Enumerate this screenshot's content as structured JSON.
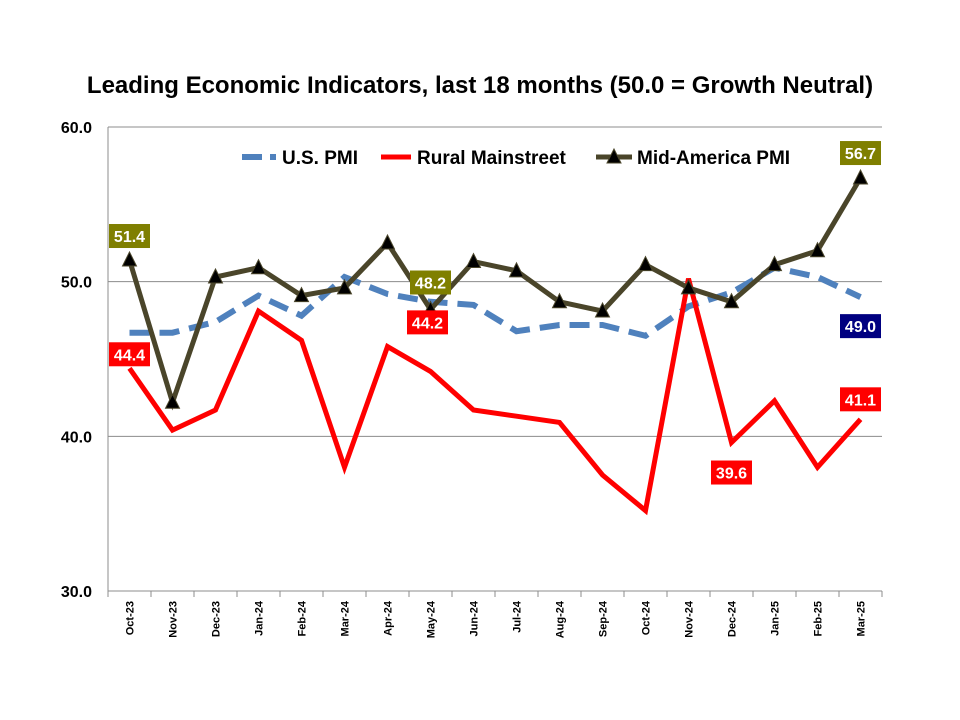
{
  "chart_data": {
    "type": "line",
    "title": "Leading Economic Indicators, last 18 months (50.0 = Growth Neutral)",
    "xlabel": "",
    "ylabel": "",
    "ylim": [
      30,
      60
    ],
    "yticks": [
      "30.0",
      "40.0",
      "50.0",
      "60.0"
    ],
    "grid": "horizontal",
    "legend": "top-right",
    "categories": [
      "Oct-23",
      "Nov-23",
      "Dec-23",
      "Jan-24",
      "Feb-24",
      "Mar-24",
      "Apr-24",
      "May-24",
      "Jun-24",
      "Jul-24",
      "Aug-24",
      "Sep-24",
      "Oct-24",
      "Nov-24",
      "Dec-24",
      "Jan-25",
      "Feb-25",
      "Mar-25"
    ],
    "series": [
      {
        "name": "U.S. PMI",
        "color": "#4f81bd",
        "style": "dashed",
        "values": [
          46.7,
          46.7,
          47.4,
          49.1,
          47.8,
          50.3,
          49.2,
          48.7,
          48.5,
          46.8,
          47.2,
          47.2,
          46.5,
          48.4,
          49.3,
          50.9,
          50.3,
          49.0
        ]
      },
      {
        "name": "Rural Mainstreet",
        "color": "#ff0000",
        "style": "solid",
        "values": [
          44.4,
          40.4,
          41.7,
          48.1,
          46.2,
          38.0,
          45.8,
          44.2,
          41.7,
          41.3,
          40.9,
          37.5,
          35.2,
          50.2,
          39.6,
          42.3,
          38.0,
          41.1
        ]
      },
      {
        "name": "Mid-America PMI",
        "color": "#4a452a",
        "style": "solid-triangle",
        "values": [
          51.4,
          42.2,
          50.3,
          50.9,
          49.1,
          49.6,
          52.5,
          48.2,
          51.3,
          50.7,
          48.7,
          48.1,
          51.1,
          49.6,
          48.7,
          51.1,
          52.0,
          56.7
        ]
      }
    ],
    "data_labels": [
      {
        "series": 2,
        "index": 0,
        "text": "51.4",
        "bg": "#7f7f00"
      },
      {
        "series": 2,
        "index": 7,
        "text": "48.2",
        "bg": "#7f7f00"
      },
      {
        "series": 2,
        "index": 17,
        "text": "56.7",
        "bg": "#7f7f00"
      },
      {
        "series": 1,
        "index": 0,
        "text": "44.4",
        "bg": "#ff0000"
      },
      {
        "series": 1,
        "index": 7,
        "text": "44.2",
        "bg": "#ff0000"
      },
      {
        "series": 1,
        "index": 14,
        "text": "39.6",
        "bg": "#ff0000"
      },
      {
        "series": 1,
        "index": 17,
        "text": "41.1",
        "bg": "#ff0000"
      },
      {
        "series": 0,
        "index": 17,
        "text": "49.0",
        "bg": "#000080"
      }
    ]
  }
}
